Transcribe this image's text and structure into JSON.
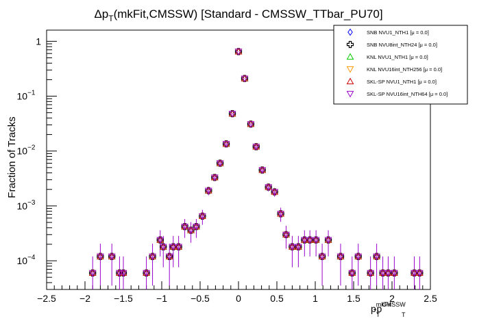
{
  "chart_data": {
    "type": "scatter",
    "title_parts": {
      "delta": "Δp",
      "sub": "T",
      "rest": "(mkFit,CMSSW) [Standard - CMSSW_TTbar_PU70]"
    },
    "ylabel": "Fraction of Tracks",
    "xlabel_parts": {
      "p1": "p",
      "s1": "T",
      "sup1": "mkFit",
      "mid": "-p",
      "s2": "T",
      "sup2": "CMSSW"
    },
    "xlim": [
      -2.5,
      2.5
    ],
    "ylim_log": [
      3e-05,
      1.6
    ],
    "yscale": "log",
    "x_ticks": [
      {
        "v": -2.5,
        "label": "−2.5"
      },
      {
        "v": -2,
        "label": "−2"
      },
      {
        "v": -1.5,
        "label": "−1.5"
      },
      {
        "v": -1,
        "label": "−1"
      },
      {
        "v": -0.5,
        "label": "−0.5"
      },
      {
        "v": 0,
        "label": "0"
      },
      {
        "v": 0.5,
        "label": "0.5"
      },
      {
        "v": 1,
        "label": "1"
      },
      {
        "v": 1.5,
        "label": "1.5"
      },
      {
        "v": 2,
        "label": "2"
      },
      {
        "v": 2.5,
        "label": "2.5"
      }
    ],
    "y_ticks": [
      {
        "v": 0.0001,
        "base": "10",
        "exp": "−4"
      },
      {
        "v": 0.001,
        "base": "10",
        "exp": "−3"
      },
      {
        "v": 0.01,
        "base": "10",
        "exp": "−2"
      },
      {
        "v": 0.1,
        "base": "10",
        "exp": "−1"
      },
      {
        "v": 1,
        "base": "1",
        "exp": ""
      }
    ],
    "legend_position": "top-right",
    "series": [
      {
        "name": "SNB NVU1_NTH1 [μ = 0.0]",
        "marker": "diamond",
        "color": "#0000ff"
      },
      {
        "name": "SNB NVU8int_NTH24 [μ = 0.0]",
        "marker": "cross",
        "color": "#000000"
      },
      {
        "name": "KNL NVU1_NTH1 [μ = 0.0]",
        "marker": "triangle-up",
        "color": "#00cc00"
      },
      {
        "name": "KNL NVU16int_NTH256 [μ = 0.0]",
        "marker": "triangle-down",
        "color": "#ff9900"
      },
      {
        "name": "SKL-SP NVU1_NTH1 [μ = 0.0]",
        "marker": "triangle-up",
        "color": "#cc0000"
      },
      {
        "name": "SKL-SP NVU16int_NTH64 [μ = 0.0]",
        "marker": "triangle-down",
        "color": "#9900cc"
      }
    ],
    "points": [
      {
        "x": -1.9,
        "y": 6e-05
      },
      {
        "x": -1.8,
        "y": 0.00012
      },
      {
        "x": -1.65,
        "y": 0.00012
      },
      {
        "x": -1.55,
        "y": 6e-05
      },
      {
        "x": -1.5,
        "y": 6e-05
      },
      {
        "x": -1.2,
        "y": 6e-05
      },
      {
        "x": -1.12,
        "y": 0.00012
      },
      {
        "x": -1.02,
        "y": 0.00024
      },
      {
        "x": -0.98,
        "y": 0.00018
      },
      {
        "x": -0.9,
        "y": 0.00012
      },
      {
        "x": -0.85,
        "y": 0.00018
      },
      {
        "x": -0.78,
        "y": 0.00018
      },
      {
        "x": -0.7,
        "y": 0.00042
      },
      {
        "x": -0.62,
        "y": 0.00036
      },
      {
        "x": -0.55,
        "y": 0.00042
      },
      {
        "x": -0.47,
        "y": 0.00065
      },
      {
        "x": -0.39,
        "y": 0.0019
      },
      {
        "x": -0.31,
        "y": 0.0033
      },
      {
        "x": -0.24,
        "y": 0.006
      },
      {
        "x": -0.16,
        "y": 0.0135
      },
      {
        "x": -0.08,
        "y": 0.048
      },
      {
        "x": 0.0,
        "y": 0.65
      },
      {
        "x": 0.08,
        "y": 0.21
      },
      {
        "x": 0.16,
        "y": 0.031
      },
      {
        "x": 0.23,
        "y": 0.012
      },
      {
        "x": 0.31,
        "y": 0.0045
      },
      {
        "x": 0.39,
        "y": 0.0022
      },
      {
        "x": 0.47,
        "y": 0.0018
      },
      {
        "x": 0.55,
        "y": 0.00072
      },
      {
        "x": 0.62,
        "y": 0.0003
      },
      {
        "x": 0.7,
        "y": 0.00018
      },
      {
        "x": 0.78,
        "y": 0.00018
      },
      {
        "x": 0.86,
        "y": 0.00024
      },
      {
        "x": 0.93,
        "y": 0.00024
      },
      {
        "x": 1.01,
        "y": 0.00024
      },
      {
        "x": 1.09,
        "y": 0.00012
      },
      {
        "x": 1.17,
        "y": 0.00024
      },
      {
        "x": 1.33,
        "y": 0.00012
      },
      {
        "x": 1.48,
        "y": 6e-05
      },
      {
        "x": 1.56,
        "y": 0.00012
      },
      {
        "x": 1.72,
        "y": 6e-05
      },
      {
        "x": 1.8,
        "y": 0.00012
      },
      {
        "x": 1.88,
        "y": 6e-05
      },
      {
        "x": 1.95,
        "y": 6e-05
      },
      {
        "x": 2.03,
        "y": 6e-05
      },
      {
        "x": 2.29,
        "y": 6e-05
      },
      {
        "x": 2.36,
        "y": 6e-05
      }
    ]
  }
}
